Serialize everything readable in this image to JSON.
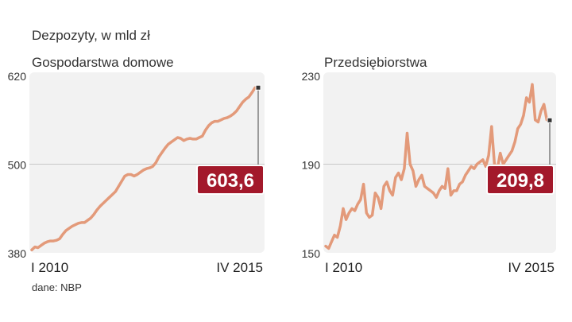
{
  "header": {
    "title": "Dezpozyty, w mld zł"
  },
  "source": "dane: NBP",
  "colors": {
    "line": "#e39a7a",
    "panel_bg": "#f2f2f2",
    "badge": "#a3192b",
    "badge_text": "#ffffff",
    "grid": "#c9c9c9"
  },
  "chart_data": [
    {
      "type": "line",
      "subtitle": "Gospodarstwa domowe",
      "x_start_label": "I 2010",
      "x_end_label": "IV 2015",
      "ylim": [
        380,
        620
      ],
      "yticks": [
        380,
        500,
        620
      ],
      "ytick_labels": [
        "380",
        "500",
        "620"
      ],
      "grid": "horizontal at 500",
      "last_value_label": "603,6",
      "values": [
        384,
        388,
        387,
        390,
        393,
        395,
        396,
        396,
        397,
        399,
        405,
        410,
        413,
        416,
        418,
        420,
        421,
        421,
        424,
        427,
        432,
        438,
        443,
        447,
        451,
        455,
        459,
        463,
        470,
        477,
        484,
        486,
        486,
        484,
        486,
        489,
        492,
        494,
        495,
        497,
        502,
        510,
        516,
        522,
        527,
        530,
        533,
        536,
        535,
        532,
        534,
        535,
        534,
        534,
        536,
        538,
        546,
        552,
        556,
        558,
        558,
        560,
        562,
        563,
        565,
        568,
        572,
        578,
        584,
        588,
        591,
        597,
        603.6,
        603.6
      ]
    },
    {
      "type": "line",
      "subtitle": "Przedsiębiorstwa",
      "x_start_label": "I 2010",
      "x_end_label": "IV 2015",
      "ylim": [
        150,
        230
      ],
      "yticks": [
        150,
        190,
        230
      ],
      "ytick_labels": [
        "150",
        "190",
        "230"
      ],
      "grid": "horizontal at 190",
      "last_value_label": "209,8",
      "values": [
        153,
        152,
        155,
        158,
        157,
        162,
        170,
        165,
        168,
        170,
        169,
        172,
        174,
        181,
        168,
        166,
        167,
        177,
        175,
        170,
        180,
        182,
        178,
        176,
        184,
        186,
        183,
        188,
        204,
        190,
        187,
        180,
        183,
        185,
        180,
        179,
        178,
        177,
        175,
        178,
        180,
        179,
        188,
        176,
        178,
        178,
        181,
        182,
        185,
        187,
        189,
        188,
        190,
        191,
        192,
        189,
        194,
        207,
        190,
        188,
        195,
        190,
        192,
        194,
        196,
        200,
        206,
        208,
        212,
        220,
        218,
        226,
        210,
        209,
        214,
        217,
        210,
        209.8
      ]
    }
  ]
}
